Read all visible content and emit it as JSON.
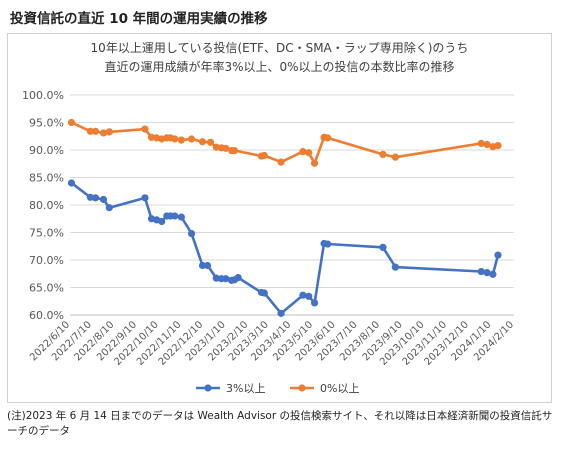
{
  "page": {
    "title": "投資信託の直近 10 年間の運用実績の推移",
    "footnote": "(注)2023 年 6 月 14 日までのデータは Wealth Advisor の投信検索サイト、それ以降は日本経済新聞の投資信託サーチのデータ"
  },
  "chart_data": {
    "type": "line",
    "title_lines": [
      "10年以上運用している投信(ETF、DC・SMA・ラップ専用除く)のうち",
      "直近の運用成績が年率3%以上、0%以上の投信の本数比率の推移"
    ],
    "xlabel": "",
    "ylabel": "",
    "ylim": [
      60,
      100
    ],
    "yticks": [
      "60.0%",
      "65.0%",
      "70.0%",
      "75.0%",
      "80.0%",
      "85.0%",
      "90.0%",
      "95.0%",
      "100.0%"
    ],
    "xticks": [
      "2022/6/10",
      "2022/7/10",
      "2022/8/10",
      "2022/9/10",
      "2022/10/10",
      "2022/11/10",
      "2022/12/10",
      "2023/1/10",
      "2023/2/10",
      "2023/3/10",
      "2023/4/10",
      "2023/5/10",
      "2023/6/10",
      "2023/7/10",
      "2023/8/10",
      "2023/9/10",
      "2023/10/10",
      "2023/11/10",
      "2023/12/10",
      "2024/1/10",
      "2024/2/10"
    ],
    "xrange": [
      "2022/6/10",
      "2024/2/10"
    ],
    "grid": "horizontal",
    "legend_position": "bottom",
    "series": [
      {
        "name": "3%以上",
        "color": "#4472c4",
        "points": [
          [
            "2022/6/12",
            84.0
          ],
          [
            "2022/7/8",
            81.4
          ],
          [
            "2022/7/15",
            81.3
          ],
          [
            "2022/7/26",
            81.0
          ],
          [
            "2022/8/3",
            79.5
          ],
          [
            "2022/9/21",
            81.3
          ],
          [
            "2022/9/30",
            77.5
          ],
          [
            "2022/10/7",
            77.3
          ],
          [
            "2022/10/14",
            77.0
          ],
          [
            "2022/10/21",
            78.0
          ],
          [
            "2022/10/26",
            78.0
          ],
          [
            "2022/11/1",
            78.0
          ],
          [
            "2022/11/10",
            77.8
          ],
          [
            "2022/11/24",
            74.8
          ],
          [
            "2022/12/9",
            69.0
          ],
          [
            "2022/12/16",
            69.0
          ],
          [
            "2022/12/28",
            66.7
          ],
          [
            "2023/1/4",
            66.6
          ],
          [
            "2023/1/10",
            66.6
          ],
          [
            "2023/1/18",
            66.3
          ],
          [
            "2023/1/22",
            66.4
          ],
          [
            "2023/1/27",
            66.8
          ],
          [
            "2023/2/28",
            64.1
          ],
          [
            "2023/3/4",
            64.0
          ],
          [
            "2023/3/27",
            60.3
          ],
          [
            "2023/4/26",
            63.6
          ],
          [
            "2023/5/4",
            63.4
          ],
          [
            "2023/5/12",
            62.2
          ],
          [
            "2023/5/25",
            73.0
          ],
          [
            "2023/5/30",
            72.9
          ],
          [
            "2023/8/14",
            72.3
          ],
          [
            "2023/8/31",
            68.7
          ],
          [
            "2023/12/27",
            67.9
          ],
          [
            "2024/1/4",
            67.7
          ],
          [
            "2024/1/12",
            67.4
          ],
          [
            "2024/1/19",
            70.9
          ]
        ]
      },
      {
        "name": "0%以上",
        "color": "#ed7d31",
        "points": [
          [
            "2022/6/12",
            95.0
          ],
          [
            "2022/7/8",
            93.4
          ],
          [
            "2022/7/15",
            93.4
          ],
          [
            "2022/7/26",
            93.1
          ],
          [
            "2022/8/3",
            93.3
          ],
          [
            "2022/9/21",
            93.8
          ],
          [
            "2022/9/30",
            92.3
          ],
          [
            "2022/10/7",
            92.2
          ],
          [
            "2022/10/14",
            92.0
          ],
          [
            "2022/10/21",
            92.2
          ],
          [
            "2022/10/26",
            92.2
          ],
          [
            "2022/11/1",
            92.0
          ],
          [
            "2022/11/10",
            91.8
          ],
          [
            "2022/11/24",
            92.0
          ],
          [
            "2022/12/9",
            91.5
          ],
          [
            "2022/12/20",
            91.4
          ],
          [
            "2022/12/28",
            90.5
          ],
          [
            "2023/1/4",
            90.4
          ],
          [
            "2023/1/10",
            90.3
          ],
          [
            "2023/1/18",
            89.9
          ],
          [
            "2023/1/22",
            89.9
          ],
          [
            "2023/2/28",
            88.9
          ],
          [
            "2023/3/4",
            89.0
          ],
          [
            "2023/3/27",
            87.8
          ],
          [
            "2023/4/26",
            89.7
          ],
          [
            "2023/5/4",
            89.5
          ],
          [
            "2023/5/12",
            87.6
          ],
          [
            "2023/5/25",
            92.3
          ],
          [
            "2023/5/30",
            92.2
          ],
          [
            "2023/8/14",
            89.2
          ],
          [
            "2023/8/31",
            88.7
          ],
          [
            "2023/12/27",
            91.2
          ],
          [
            "2024/1/4",
            91.0
          ],
          [
            "2024/1/12",
            90.6
          ],
          [
            "2024/1/19",
            90.8
          ]
        ]
      }
    ]
  }
}
